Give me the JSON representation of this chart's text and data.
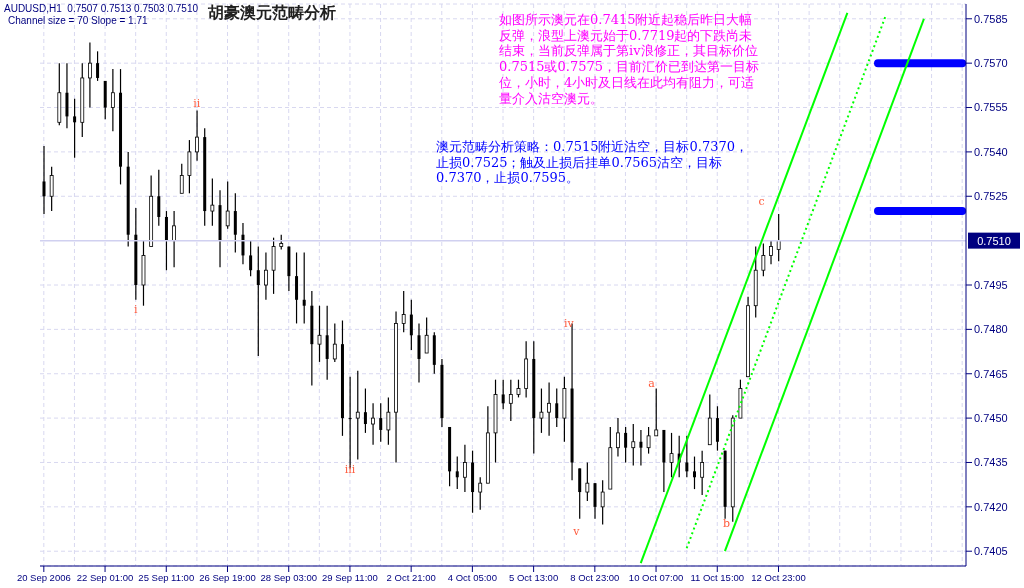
{
  "chart_data": {
    "type": "candlestick",
    "title": "胡豪澳元范畴分析",
    "categories": [
      "20 Sep 2006",
      null,
      null,
      null,
      null,
      null,
      null,
      null,
      "22 Sep 01:00",
      null,
      null,
      null,
      null,
      null,
      null,
      null,
      "25 Sep 11:00",
      null,
      null,
      null,
      null,
      null,
      null,
      null,
      "26 Sep 19:00",
      null,
      null,
      null,
      null,
      null,
      null,
      null,
      "28 Sep 03:00",
      null,
      null,
      null,
      null,
      null,
      null,
      null,
      "29 Sep 11:00",
      null,
      null,
      null,
      null,
      null,
      null,
      null,
      "2 Oct 21:00",
      null,
      null,
      null,
      null,
      null,
      null,
      null,
      "4 Oct 05:00",
      null,
      null,
      null,
      null,
      null,
      null,
      null,
      "5 Oct 13:00",
      null,
      null,
      null,
      null,
      null,
      null,
      null,
      "8 Oct 23:00",
      null,
      null,
      null,
      null,
      null,
      null,
      null,
      "10 Oct 07:00",
      null,
      null,
      null,
      null,
      null,
      null,
      null,
      "11 Oct 15:00",
      null,
      null,
      null,
      null,
      null,
      null,
      null,
      "12 Oct 23:00",
      null,
      null,
      null,
      null,
      null,
      null,
      null,
      null,
      null,
      null,
      null,
      null,
      null,
      null,
      null,
      null,
      null,
      null,
      null,
      null,
      null,
      null,
      null,
      null
    ],
    "color": "#000000",
    "ohlc": [
      [
        0.753,
        0.7542,
        0.7519,
        0.7525
      ],
      [
        0.7525,
        0.7535,
        0.752,
        0.7532
      ],
      [
        0.755,
        0.757,
        0.7549,
        0.756
      ],
      [
        0.756,
        0.757,
        0.7548,
        0.7552
      ],
      [
        0.7552,
        0.7558,
        0.7538,
        0.755
      ],
      [
        0.755,
        0.757,
        0.7545,
        0.7565
      ],
      [
        0.7565,
        0.7577,
        0.7555,
        0.757
      ],
      [
        0.757,
        0.7574,
        0.7564,
        0.7565
      ],
      [
        0.7564,
        0.7564,
        0.7551,
        0.7555
      ],
      [
        0.7555,
        0.7568,
        0.7547,
        0.756
      ],
      [
        0.756,
        0.7568,
        0.7529,
        0.7535
      ],
      [
        0.7535,
        0.754,
        0.7508,
        0.7512
      ],
      [
        0.7512,
        0.7521,
        0.749,
        0.7495
      ],
      [
        0.7495,
        0.751,
        0.7488,
        0.7505
      ],
      [
        0.7508,
        0.7532,
        0.7508,
        0.7525
      ],
      [
        0.7525,
        0.7534,
        0.7515,
        0.7518
      ],
      [
        0.7518,
        0.752,
        0.75,
        0.751
      ],
      [
        0.751,
        0.752,
        0.7501,
        0.7515
      ],
      [
        0.7526,
        0.7536,
        0.7526,
        0.7532
      ],
      [
        0.7532,
        0.7544,
        0.7526,
        0.754
      ],
      [
        0.754,
        0.7554,
        0.7537,
        0.7545
      ],
      [
        0.7545,
        0.7548,
        0.7515,
        0.752
      ],
      [
        0.752,
        0.7531,
        0.7515,
        0.7522
      ],
      [
        0.7522,
        0.7527,
        0.7501,
        0.751
      ],
      [
        0.7515,
        0.753,
        0.7514,
        0.752
      ],
      [
        0.752,
        0.7526,
        0.7506,
        0.7512
      ],
      [
        0.7512,
        0.7516,
        0.7502,
        0.7505
      ],
      [
        0.7505,
        0.751,
        0.7498,
        0.75
      ],
      [
        0.75,
        0.7508,
        0.7471,
        0.7495
      ],
      [
        0.7495,
        0.7506,
        0.749,
        0.75
      ],
      [
        0.75,
        0.7511,
        0.7492,
        0.7508
      ],
      [
        0.7508,
        0.7512,
        0.7507,
        0.7509
      ],
      [
        0.7508,
        0.7508,
        0.7493,
        0.7498
      ],
      [
        0.7498,
        0.7506,
        0.7482,
        0.749
      ],
      [
        0.749,
        0.7506,
        0.7482,
        0.7488
      ],
      [
        0.7488,
        0.7493,
        0.7461,
        0.7475
      ],
      [
        0.7475,
        0.7488,
        0.7469,
        0.7478
      ],
      [
        0.7478,
        0.7488,
        0.7463,
        0.747
      ],
      [
        0.747,
        0.7482,
        0.7469,
        0.7475
      ],
      [
        0.7475,
        0.7483,
        0.7444,
        0.745
      ],
      [
        0.745,
        0.7464,
        0.7433,
        0.745
      ],
      [
        0.745,
        0.7466,
        0.7436,
        0.7452
      ],
      [
        0.7452,
        0.746,
        0.7445,
        0.7448
      ],
      [
        0.7448,
        0.7455,
        0.7441,
        0.745
      ],
      [
        0.745,
        0.7455,
        0.7442,
        0.7446
      ],
      [
        0.7446,
        0.7457,
        0.7441,
        0.7452
      ],
      [
        0.7452,
        0.7486,
        0.7435,
        0.7482
      ],
      [
        0.7482,
        0.7493,
        0.7479,
        0.7485
      ],
      [
        0.7485,
        0.749,
        0.7473,
        0.7478
      ],
      [
        0.7478,
        0.7482,
        0.7462,
        0.747
      ],
      [
        0.7472,
        0.7484,
        0.7472,
        0.7478
      ],
      [
        0.7478,
        0.7479,
        0.7465,
        0.7468
      ],
      [
        0.7468,
        0.747,
        0.7447,
        0.745
      ],
      [
        0.7447,
        0.7447,
        0.7427,
        0.7432
      ],
      [
        0.7432,
        0.7437,
        0.7426,
        0.743
      ],
      [
        0.743,
        0.7441,
        0.7425,
        0.7435
      ],
      [
        0.7435,
        0.7439,
        0.7418,
        0.7425
      ],
      [
        0.7425,
        0.743,
        0.7419,
        0.7428
      ],
      [
        0.7428,
        0.7454,
        0.7428,
        0.7445
      ],
      [
        0.7445,
        0.7463,
        0.7435,
        0.7458
      ],
      [
        0.7458,
        0.7463,
        0.7453,
        0.7455
      ],
      [
        0.7455,
        0.7463,
        0.7449,
        0.7458
      ],
      [
        0.7458,
        0.7463,
        0.7457,
        0.746
      ],
      [
        0.746,
        0.7476,
        0.7457,
        0.747
      ],
      [
        0.747,
        0.7476,
        0.7438,
        0.745
      ],
      [
        0.745,
        0.746,
        0.7445,
        0.7452
      ],
      [
        0.7452,
        0.7462,
        0.7444,
        0.7455
      ],
      [
        0.7455,
        0.746,
        0.7447,
        0.745
      ],
      [
        0.745,
        0.7464,
        0.7442,
        0.746
      ],
      [
        0.746,
        0.7482,
        0.7429,
        0.7435
      ],
      [
        0.7433,
        0.7433,
        0.7416,
        0.7425
      ],
      [
        0.7425,
        0.7435,
        0.7422,
        0.7428
      ],
      [
        0.7428,
        0.7428,
        0.7416,
        0.742
      ],
      [
        0.742,
        0.7429,
        0.7414,
        0.7425
      ],
      [
        0.7426,
        0.7447,
        0.7426,
        0.744
      ],
      [
        0.744,
        0.745,
        0.7437,
        0.7445
      ],
      [
        0.7445,
        0.7447,
        0.7435,
        0.744
      ],
      [
        0.744,
        0.7448,
        0.7434,
        0.7442
      ],
      [
        0.7442,
        0.7446,
        0.7434,
        0.744
      ],
      [
        0.744,
        0.7447,
        0.7438,
        0.7444
      ],
      [
        0.7444,
        0.746,
        0.7444,
        0.7446
      ],
      [
        0.7446,
        0.7446,
        0.7425,
        0.7435
      ],
      [
        0.7435,
        0.7445,
        0.743,
        0.7438
      ],
      [
        0.7438,
        0.7444,
        0.743,
        0.7435
      ],
      [
        0.7435,
        0.7444,
        0.743,
        0.7432
      ],
      [
        0.7432,
        0.7437,
        0.7426,
        0.743
      ],
      [
        0.743,
        0.7439,
        0.7424,
        0.7435
      ],
      [
        0.7441,
        0.7458,
        0.7441,
        0.745
      ],
      [
        0.745,
        0.7454,
        0.7439,
        0.7442
      ],
      [
        0.7439,
        0.7439,
        0.7416,
        0.742
      ],
      [
        0.742,
        0.7451,
        0.7415,
        0.745
      ],
      [
        0.745,
        0.7463,
        0.745,
        0.746
      ],
      [
        0.7464,
        0.7491,
        0.7464,
        0.7488
      ],
      [
        0.7488,
        0.7508,
        0.7484,
        0.75
      ],
      [
        0.75,
        0.7509,
        0.7498,
        0.7505
      ],
      [
        0.7505,
        0.751,
        0.7502,
        0.7508
      ],
      [
        0.7507,
        0.7519,
        0.7503,
        0.751
      ],
      null,
      null,
      null,
      null,
      null,
      null,
      null,
      null,
      null,
      null,
      null,
      null,
      null,
      null,
      null,
      null,
      null,
      null,
      null,
      null,
      null,
      null,
      null,
      null
    ],
    "series": [
      {
        "type": "line",
        "color": "#00ff00",
        "line_style": "solid",
        "values": [
          null,
          null,
          null,
          null,
          null,
          null,
          null,
          null,
          null,
          null,
          null,
          null,
          null,
          null,
          null,
          null,
          null,
          null,
          null,
          null,
          null,
          null,
          null,
          null,
          null,
          null,
          null,
          null,
          null,
          null,
          null,
          null,
          null,
          null,
          null,
          null,
          null,
          null,
          null,
          null,
          null,
          null,
          null,
          null,
          null,
          null,
          null,
          null,
          null,
          null,
          null,
          null,
          null,
          null,
          null,
          null,
          null,
          null,
          null,
          null,
          null,
          null,
          null,
          null,
          null,
          null,
          null,
          null,
          null,
          null,
          null,
          null,
          null,
          null,
          null,
          null,
          null,
          null,
          0.7401,
          null,
          null,
          null,
          null,
          null,
          null,
          null,
          null,
          null,
          null,
          null,
          null,
          null,
          null,
          null,
          null,
          null,
          null,
          null,
          null,
          null,
          null,
          null,
          null,
          null,
          null,
          0.7587,
          null,
          null,
          null,
          null,
          null,
          null,
          null,
          null,
          null,
          null,
          null,
          null,
          null,
          null,
          null
        ]
      },
      {
        "type": "line",
        "color": "#00ff00",
        "line_style": "dotted",
        "values": [
          null,
          null,
          null,
          null,
          null,
          null,
          null,
          null,
          null,
          null,
          null,
          null,
          null,
          null,
          null,
          null,
          null,
          null,
          null,
          null,
          null,
          null,
          null,
          null,
          null,
          null,
          null,
          null,
          null,
          null,
          null,
          null,
          null,
          null,
          null,
          null,
          null,
          null,
          null,
          null,
          null,
          null,
          null,
          null,
          null,
          null,
          null,
          null,
          null,
          null,
          null,
          null,
          null,
          null,
          null,
          null,
          null,
          null,
          null,
          null,
          null,
          null,
          null,
          null,
          null,
          null,
          null,
          null,
          null,
          null,
          null,
          null,
          null,
          null,
          null,
          null,
          null,
          null,
          null,
          null,
          null,
          null,
          null,
          null,
          0.7406,
          null,
          null,
          null,
          null,
          null,
          null,
          null,
          null,
          null,
          null,
          null,
          null,
          null,
          null,
          null,
          null,
          null,
          null,
          null,
          null,
          null,
          null,
          null,
          null,
          null,
          0.7586,
          null,
          null,
          null,
          null,
          null,
          null,
          null,
          null,
          null,
          null
        ]
      },
      {
        "type": "line",
        "color": "#00ff00",
        "line_style": "solid",
        "values": [
          null,
          null,
          null,
          null,
          null,
          null,
          null,
          null,
          null,
          null,
          null,
          null,
          null,
          null,
          null,
          null,
          null,
          null,
          null,
          null,
          null,
          null,
          null,
          null,
          null,
          null,
          null,
          null,
          null,
          null,
          null,
          null,
          null,
          null,
          null,
          null,
          null,
          null,
          null,
          null,
          null,
          null,
          null,
          null,
          null,
          null,
          null,
          null,
          null,
          null,
          null,
          null,
          null,
          null,
          null,
          null,
          null,
          null,
          null,
          null,
          null,
          null,
          null,
          null,
          null,
          null,
          null,
          null,
          null,
          null,
          null,
          null,
          null,
          null,
          null,
          null,
          null,
          null,
          null,
          null,
          null,
          null,
          null,
          null,
          null,
          null,
          null,
          null,
          null,
          0.7405,
          null,
          null,
          null,
          null,
          null,
          null,
          null,
          null,
          null,
          null,
          null,
          null,
          null,
          null,
          null,
          null,
          null,
          null,
          null,
          null,
          null,
          null,
          null,
          null,
          null,
          0.7585,
          null,
          null,
          null,
          null,
          null
        ]
      }
    ],
    "ylim": [
      0.74,
      0.759
    ],
    "yticks": [
      0.7405,
      {
        "value": 0.742,
        "label": "0.7420"
      },
      0.7435,
      {
        "value": 0.745,
        "label": "0.7450"
      },
      0.7465,
      {
        "value": 0.748,
        "label": "0.7480"
      },
      0.7495,
      0.7525,
      {
        "value": 0.754,
        "label": "0.7540"
      },
      0.7555,
      {
        "value": 0.757,
        "label": "0.7570"
      },
      0.7585
    ],
    "grid": true,
    "ref_lines": [
      {
        "axis": "y",
        "value": 0.757,
        "color": "#0000ff"
      },
      {
        "axis": "y",
        "value": 0.752,
        "color": "#0000ff"
      },
      {
        "axis": "y",
        "value": 0.751,
        "label": "0.7510",
        "color": "#d0d0f0"
      }
    ],
    "annotations": [
      "AUDUSD,H1  0.7507 0.7513 0.7503 0.7510",
      "Channel size = 70 Slope = 1.71",
      "如图所示澳元在0.7415附近起稳后昨日大幅反弹，浪型上澳元始于0.7719起的下跌尚未结束，当前反弹属于第iv浪修正，其目标价位0.7515或0.7575，目前汇价已到达第一目标位，小时，4小时及日线在此均有阻力，可适量介入沽空澳元。",
      "澳元范畴分析策略：0.7515附近沽空，目标0.7370，止损0.7525；触及止损后挂单0.7565沽空，目标0.7370，止损0.7595。",
      "i",
      "ii",
      "iii",
      "iv",
      "v",
      "a",
      "b",
      "c"
    ]
  }
}
